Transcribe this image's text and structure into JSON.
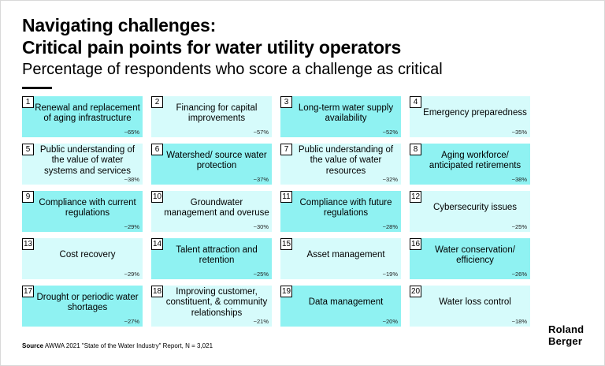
{
  "title_line1": "Navigating challenges:",
  "title_line2": "Critical pain points for water utility operators",
  "subtitle": "Percentage of respondents who score a challenge as critical",
  "source_label": "Source",
  "source_text": "AWWA 2021 \"State of the Water Industry\" Report, N = 3,021",
  "logo_line1": "Roland",
  "logo_line2": "Berger",
  "colors": {
    "dark": "#8ff2f2",
    "light": "#d6fbfb"
  },
  "items": [
    {
      "num": "1",
      "label": "Renewal and replacement of aging infrastructure",
      "pct": "~65%",
      "value": 65,
      "shade": "dark"
    },
    {
      "num": "2",
      "label": "Financing for capital improvements",
      "pct": "~57%",
      "value": 57,
      "shade": "light"
    },
    {
      "num": "3",
      "label": "Long-term water supply availability",
      "pct": "~52%",
      "value": 52,
      "shade": "dark"
    },
    {
      "num": "4",
      "label": "Emergency preparedness",
      "pct": "~35%",
      "value": 35,
      "shade": "light"
    },
    {
      "num": "5",
      "label": "Public understanding of the value of water systems and services",
      "pct": "~38%",
      "value": 38,
      "shade": "light"
    },
    {
      "num": "6",
      "label": "Watershed/ source water protection",
      "pct": "~37%",
      "value": 37,
      "shade": "dark"
    },
    {
      "num": "7",
      "label": "Public understanding of the value of water resources",
      "pct": "~32%",
      "value": 32,
      "shade": "light"
    },
    {
      "num": "8",
      "label": "Aging workforce/ anticipated retirements",
      "pct": "~38%",
      "value": 38,
      "shade": "dark"
    },
    {
      "num": "9",
      "label": "Compliance with current regulations",
      "pct": "~29%",
      "value": 29,
      "shade": "dark"
    },
    {
      "num": "10",
      "label": "Groundwater management and overuse",
      "pct": "~30%",
      "value": 30,
      "shade": "light"
    },
    {
      "num": "11",
      "label": "Compliance with future regulations",
      "pct": "~28%",
      "value": 28,
      "shade": "dark"
    },
    {
      "num": "12",
      "label": "Cybersecurity issues",
      "pct": "~25%",
      "value": 25,
      "shade": "light"
    },
    {
      "num": "13",
      "label": "Cost recovery",
      "pct": "~29%",
      "value": 29,
      "shade": "light"
    },
    {
      "num": "14",
      "label": "Talent attraction and retention",
      "pct": "~25%",
      "value": 25,
      "shade": "dark"
    },
    {
      "num": "15",
      "label": "Asset management",
      "pct": "~19%",
      "value": 19,
      "shade": "light"
    },
    {
      "num": "16",
      "label": "Water conservation/ efficiency",
      "pct": "~26%",
      "value": 26,
      "shade": "dark"
    },
    {
      "num": "17",
      "label": "Drought or periodic water shortages",
      "pct": "~27%",
      "value": 27,
      "shade": "dark"
    },
    {
      "num": "18",
      "label": "Improving customer, constituent, & community relationships",
      "pct": "~21%",
      "value": 21,
      "shade": "light"
    },
    {
      "num": "19",
      "label": "Data management",
      "pct": "~20%",
      "value": 20,
      "shade": "dark"
    },
    {
      "num": "20",
      "label": "Water loss control",
      "pct": "~18%",
      "value": 18,
      "shade": "light"
    }
  ]
}
